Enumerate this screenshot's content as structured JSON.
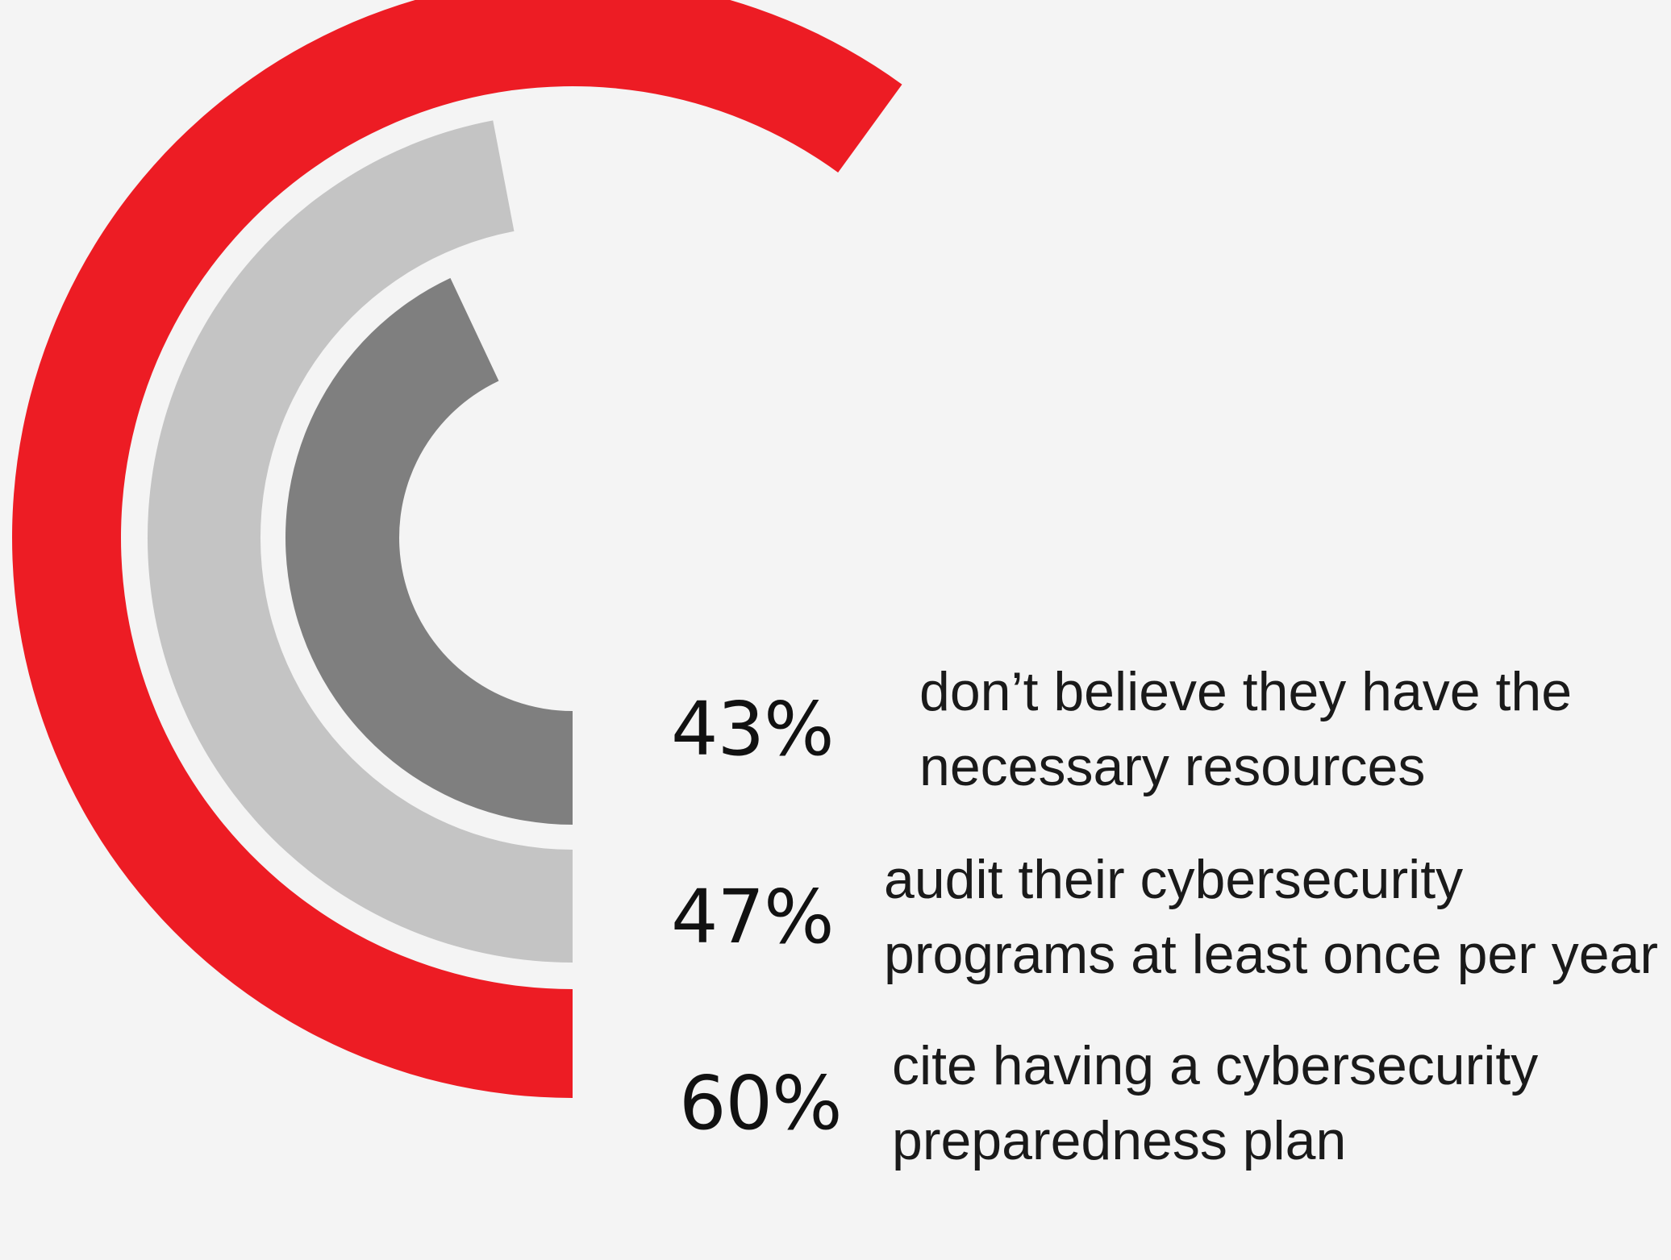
{
  "chart_data": {
    "type": "radial-bar",
    "series": [
      {
        "value": 60,
        "label": "60%",
        "description_lines": [
          "cite having a cybersecurity",
          "preparedness plan"
        ],
        "color": "#ed1c24"
      },
      {
        "value": 47,
        "label": "47%",
        "description_lines": [
          "audit their cybersecurity",
          "programs at least once per year"
        ],
        "color": "#c4c4c4"
      },
      {
        "value": 43,
        "label": "43%",
        "description_lines": [
          "don’t believe they have the",
          "necessary resources"
        ],
        "color": "#7f7f7f"
      }
    ]
  },
  "colors": {
    "background": "#f4f4f4",
    "text": "#111111"
  }
}
